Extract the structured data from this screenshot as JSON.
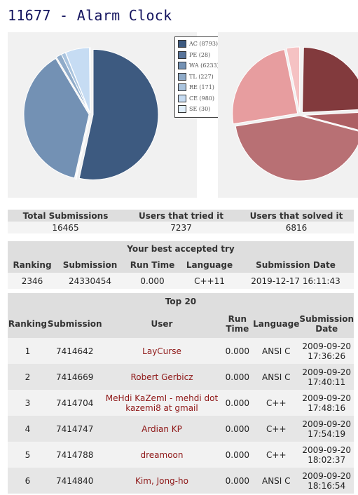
{
  "title": "11677 - Alarm Clock",
  "verdict_chart": {
    "type": "pie",
    "slices": [
      {
        "label": "AC (8793)",
        "value": 8793,
        "color": "#3d5a80"
      },
      {
        "label": "PE (28)",
        "value": 28,
        "color": "#58749a"
      },
      {
        "label": "WA (6233)",
        "value": 6233,
        "color": "#7391b4"
      },
      {
        "label": "TL (227)",
        "value": 227,
        "color": "#8fabc9"
      },
      {
        "label": "RE (171)",
        "value": 171,
        "color": "#aac4de"
      },
      {
        "label": "CE (980)",
        "value": 980,
        "color": "#c6dcf3"
      },
      {
        "label": "SE (30)",
        "value": 30,
        "color": "#e0eefb"
      }
    ]
  },
  "language_chart": {
    "type": "pie",
    "slice_colors": [
      "#823a3d",
      "#ad5f63",
      "#b87074",
      "#e79d9f",
      "#f5c2c3"
    ]
  },
  "stats": {
    "headers": [
      "Total Submissions",
      "Users that tried it",
      "Users that solved it"
    ],
    "values": [
      "16465",
      "7237",
      "6816"
    ]
  },
  "best": {
    "caption": "Your best accepted try",
    "headers": [
      "Ranking",
      "Submission",
      "Run Time",
      "Language",
      "Submission Date"
    ],
    "values": [
      "2346",
      "24330454",
      "0.000",
      "C++11",
      "2019-12-17 16:11:43"
    ]
  },
  "top20": {
    "caption": "Top 20",
    "headers": {
      "ranking": "Ranking",
      "submission": "Submission",
      "user": "User",
      "run_time": "Run Time",
      "language": "Language",
      "date": "Submission Date"
    },
    "rows": [
      {
        "rank": "1",
        "submission": "7414642",
        "user": "LayCurse",
        "time": "0.000",
        "lang": "ANSI C",
        "date": "2009-09-20",
        "clock": "17:36:26"
      },
      {
        "rank": "2",
        "submission": "7414669",
        "user": "Robert Gerbicz",
        "time": "0.000",
        "lang": "ANSI C",
        "date": "2009-09-20",
        "clock": "17:40:11"
      },
      {
        "rank": "3",
        "submission": "7414704",
        "user": "MeHdi KaZemI - mehdi dot kazemi8 at gmail",
        "time": "0.000",
        "lang": "C++",
        "date": "2009-09-20",
        "clock": "17:48:16"
      },
      {
        "rank": "4",
        "submission": "7414747",
        "user": "Ardian KP",
        "time": "0.000",
        "lang": "C++",
        "date": "2009-09-20",
        "clock": "17:54:19"
      },
      {
        "rank": "5",
        "submission": "7414788",
        "user": "dreamoon",
        "time": "0.000",
        "lang": "C++",
        "date": "2009-09-20",
        "clock": "18:02:37"
      },
      {
        "rank": "6",
        "submission": "7414840",
        "user": "Kim, Jong-ho",
        "time": "0.000",
        "lang": "ANSI C",
        "date": "2009-09-20",
        "clock": "18:16:54"
      }
    ]
  }
}
